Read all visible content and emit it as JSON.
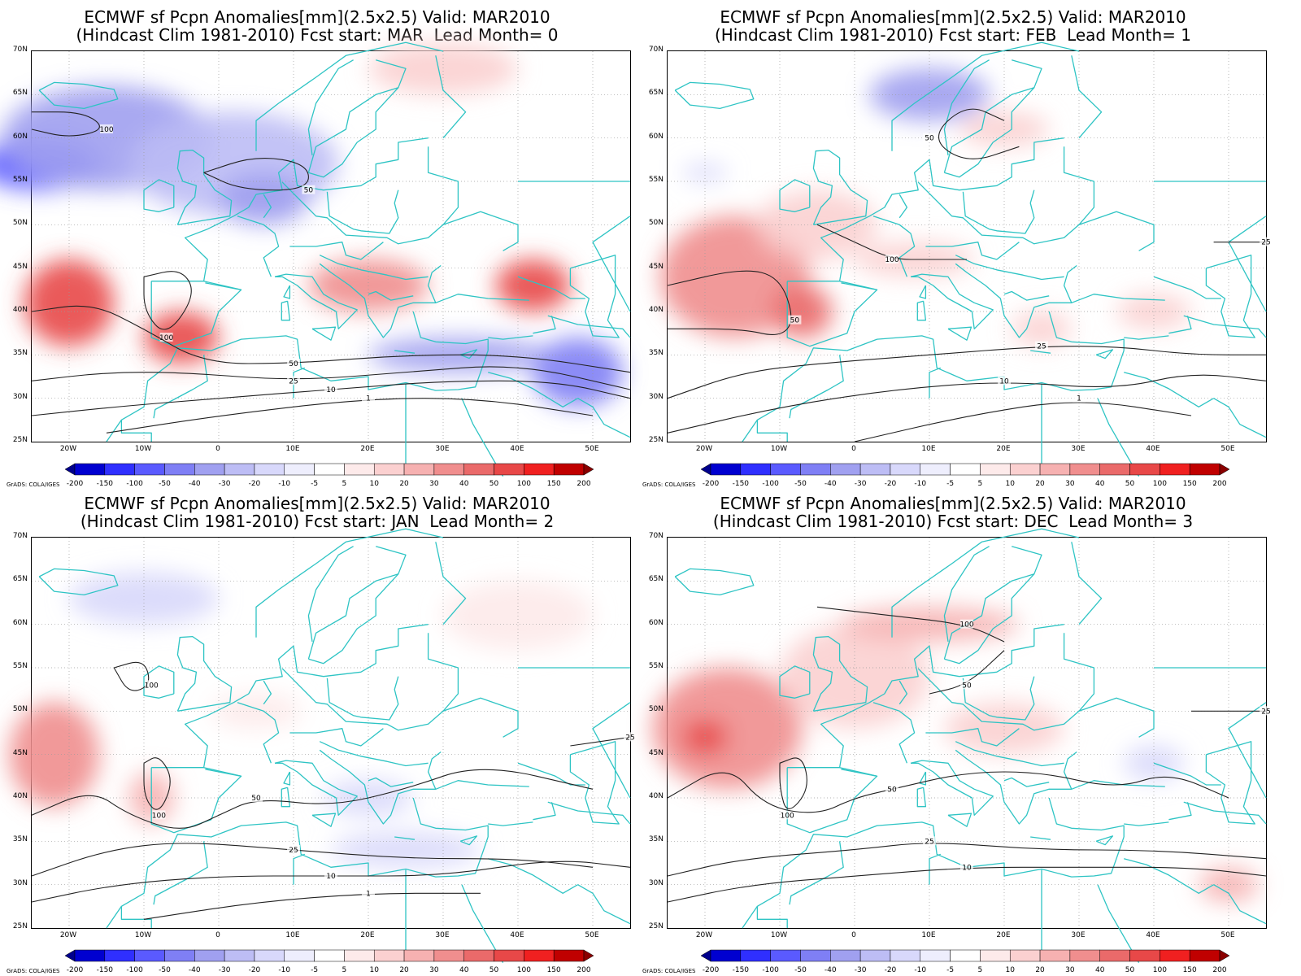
{
  "colors": {
    "coast": "#2ec4c4",
    "contour": "#222222",
    "grid": "#9a9a9a",
    "scale": [
      "#00008c",
      "#0000d0",
      "#2f2fff",
      "#5a5aff",
      "#7f7ff5",
      "#a0a0f0",
      "#bdbdf5",
      "#d8d8fb",
      "#eeeefd",
      "#ffffff",
      "#fdeaea",
      "#fbd0d0",
      "#f6b1b1",
      "#f08e8e",
      "#ea6a6a",
      "#e84848",
      "#f02020",
      "#c00000",
      "#8a0000"
    ]
  },
  "colorbar": {
    "labels": [
      "-200",
      "-150",
      "-100",
      "-50",
      "-40",
      "-30",
      "-20",
      "-10",
      "-5",
      "5",
      "10",
      "20",
      "30",
      "40",
      "50",
      "100",
      "150",
      "200"
    ],
    "credit": "GrADS: COLA/IGES"
  },
  "axes": {
    "lat_labels": [
      "70N",
      "65N",
      "60N",
      "55N",
      "50N",
      "45N",
      "40N",
      "35N",
      "30N",
      "25N"
    ],
    "lon_labels": [
      "20W",
      "10W",
      "0",
      "10E",
      "20E",
      "30E",
      "40E",
      "50E"
    ]
  },
  "panels": [
    {
      "title1": "ECMWF sf Pcpn Anomalies[mm](2.5x2.5) Valid: MAR2010",
      "title2": "(Hindcast Clim 1981-2010) Fcst start: MAR  Lead Month= 0",
      "blobs": [
        {
          "lon": -24,
          "lat": 57,
          "rx": 8,
          "ry": 3,
          "level": 3
        },
        {
          "lon": -15,
          "lat": 60,
          "rx": 14,
          "ry": 6,
          "level": 5
        },
        {
          "lon": 2,
          "lat": 57,
          "rx": 14,
          "ry": 6,
          "level": 6
        },
        {
          "lon": 6,
          "lat": 53,
          "rx": 6,
          "ry": 3,
          "level": 5
        },
        {
          "lon": -20,
          "lat": 41,
          "rx": 6,
          "ry": 5,
          "level": 15
        },
        {
          "lon": -5,
          "lat": 37,
          "rx": 5,
          "ry": 3,
          "level": 15
        },
        {
          "lon": 20,
          "lat": 43,
          "rx": 8,
          "ry": 3,
          "level": 13
        },
        {
          "lon": 42,
          "lat": 43,
          "rx": 5,
          "ry": 3,
          "level": 15
        },
        {
          "lon": 32,
          "lat": 35,
          "rx": 12,
          "ry": 2,
          "level": 5
        },
        {
          "lon": 48,
          "lat": 33,
          "rx": 6,
          "ry": 4,
          "level": 4
        },
        {
          "lon": 30,
          "lat": 68,
          "rx": 10,
          "ry": 3,
          "level": 11
        }
      ],
      "contours": [
        {
          "label": "100",
          "points": [
            [
              -25,
              63
            ],
            [
              -18,
              63
            ],
            [
              -15,
              61
            ],
            [
              -20,
              60
            ],
            [
              -25,
              61
            ]
          ]
        },
        {
          "label": "50",
          "points": [
            [
              -2,
              56
            ],
            [
              5,
              58
            ],
            [
              12,
              57
            ],
            [
              12,
              54
            ],
            [
              3,
              54
            ],
            [
              -2,
              56
            ]
          ]
        },
        {
          "label": "100",
          "points": [
            [
              -10,
              44
            ],
            [
              -5,
              45
            ],
            [
              -3,
              42
            ],
            [
              -7,
              37
            ],
            [
              -10,
              40
            ],
            [
              -10,
              44
            ]
          ]
        },
        {
          "label": "50",
          "points": [
            [
              -25,
              40
            ],
            [
              -17,
              41
            ],
            [
              -10,
              38
            ],
            [
              -2,
              34
            ],
            [
              10,
              34
            ],
            [
              25,
              35
            ],
            [
              40,
              35
            ],
            [
              55,
              33
            ]
          ]
        },
        {
          "label": "25",
          "points": [
            [
              -25,
              32
            ],
            [
              -15,
              33
            ],
            [
              -5,
              33
            ],
            [
              10,
              32
            ],
            [
              25,
              33
            ],
            [
              40,
              34
            ],
            [
              55,
              31
            ]
          ]
        },
        {
          "label": "10",
          "points": [
            [
              -25,
              28
            ],
            [
              -14,
              29
            ],
            [
              0,
              30
            ],
            [
              15,
              31
            ],
            [
              30,
              32
            ],
            [
              45,
              32
            ],
            [
              55,
              30
            ]
          ]
        },
        {
          "label": "1",
          "points": [
            [
              -15,
              26
            ],
            [
              0,
              28
            ],
            [
              20,
              30
            ],
            [
              35,
              30
            ],
            [
              50,
              28
            ]
          ]
        }
      ]
    },
    {
      "title1": "ECMWF sf Pcpn Anomalies[mm](2.5x2.5) Valid: MAR2010",
      "title2": "(Hindcast Clim 1981-2010) Fcst start: FEB  Lead Month= 1",
      "blobs": [
        {
          "lon": -16,
          "lat": 44,
          "rx": 10,
          "ry": 7,
          "level": 13
        },
        {
          "lon": -7,
          "lat": 40,
          "rx": 4,
          "ry": 3,
          "level": 14
        },
        {
          "lon": -5,
          "lat": 50,
          "rx": 8,
          "ry": 4,
          "level": 11
        },
        {
          "lon": 8,
          "lat": 46,
          "rx": 8,
          "ry": 2,
          "level": 11
        },
        {
          "lon": 10,
          "lat": 65,
          "rx": 8,
          "ry": 3,
          "level": 5
        },
        {
          "lon": 20,
          "lat": 61,
          "rx": 6,
          "ry": 2,
          "level": 11
        },
        {
          "lon": 40,
          "lat": 40,
          "rx": 5,
          "ry": 2,
          "level": 11
        },
        {
          "lon": 25,
          "lat": 38,
          "rx": 4,
          "ry": 2,
          "level": 11
        },
        {
          "lon": -20,
          "lat": 56,
          "rx": 3,
          "ry": 1,
          "level": 7
        }
      ],
      "contours": [
        {
          "label": "50",
          "points": [
            [
              -25,
              43
            ],
            [
              -15,
              45
            ],
            [
              -10,
              44
            ],
            [
              -8,
              39
            ],
            [
              -10,
              37
            ],
            [
              -15,
              38
            ],
            [
              -25,
              38
            ]
          ]
        },
        {
          "label": "100",
          "points": [
            [
              -5,
              50
            ],
            [
              0,
              48
            ],
            [
              5,
              46
            ],
            [
              10,
              46
            ],
            [
              15,
              46
            ]
          ]
        },
        {
          "label": "25",
          "points": [
            [
              -25,
              30
            ],
            [
              -15,
              33
            ],
            [
              -5,
              34
            ],
            [
              10,
              35
            ],
            [
              25,
              36
            ],
            [
              35,
              36
            ],
            [
              45,
              35
            ],
            [
              55,
              35
            ]
          ]
        },
        {
          "label": "10",
          "points": [
            [
              -25,
              26
            ],
            [
              -10,
              29
            ],
            [
              5,
              31
            ],
            [
              20,
              32
            ],
            [
              35,
              31
            ],
            [
              45,
              33
            ],
            [
              55,
              32
            ]
          ]
        },
        {
          "label": "1",
          "points": [
            [
              0,
              25
            ],
            [
              15,
              28
            ],
            [
              30,
              30
            ],
            [
              45,
              28
            ]
          ]
        },
        {
          "label": "50",
          "points": [
            [
              20,
              62
            ],
            [
              15,
              64
            ],
            [
              10,
              60
            ],
            [
              15,
              57
            ],
            [
              22,
              59
            ]
          ]
        },
        {
          "label": "25",
          "points": [
            [
              48,
              48
            ],
            [
              55,
              48
            ]
          ]
        }
      ]
    },
    {
      "title1": "ECMWF sf Pcpn Anomalies[mm](2.5x2.5) Valid: MAR2010",
      "title2": "(Hindcast Clim 1981-2010) Fcst start: JAN  Lead Month= 2",
      "blobs": [
        {
          "lon": -22,
          "lat": 45,
          "rx": 6,
          "ry": 6,
          "level": 13
        },
        {
          "lon": -9,
          "lat": 40,
          "rx": 3,
          "ry": 3,
          "level": 12
        },
        {
          "lon": -10,
          "lat": 63,
          "rx": 10,
          "ry": 3,
          "level": 7
        },
        {
          "lon": 40,
          "lat": 61,
          "rx": 10,
          "ry": 4,
          "level": 10
        },
        {
          "lon": 5,
          "lat": 50,
          "rx": 6,
          "ry": 2,
          "level": 10
        },
        {
          "lon": 20,
          "lat": 40,
          "rx": 6,
          "ry": 2,
          "level": 7
        },
        {
          "lon": 25,
          "lat": 34,
          "rx": 10,
          "ry": 2,
          "level": 7
        }
      ],
      "contours": [
        {
          "label": "100",
          "points": [
            [
              -14,
              55
            ],
            [
              -10,
              56
            ],
            [
              -9,
              53
            ],
            [
              -12,
              52
            ],
            [
              -14,
              55
            ]
          ]
        },
        {
          "label": "100",
          "points": [
            [
              -10,
              44
            ],
            [
              -8,
              45
            ],
            [
              -6,
              42
            ],
            [
              -8,
              38
            ],
            [
              -10,
              40
            ],
            [
              -10,
              44
            ]
          ]
        },
        {
          "label": "50",
          "points": [
            [
              -25,
              38
            ],
            [
              -17,
              41
            ],
            [
              -12,
              38
            ],
            [
              -5,
              36
            ],
            [
              0,
              38
            ],
            [
              5,
              40
            ],
            [
              15,
              39
            ],
            [
              25,
              41
            ],
            [
              35,
              44
            ],
            [
              50,
              41
            ]
          ]
        },
        {
          "label": "25",
          "points": [
            [
              -25,
              31
            ],
            [
              -15,
              34
            ],
            [
              -5,
              35
            ],
            [
              10,
              34
            ],
            [
              25,
              33
            ],
            [
              40,
              33
            ],
            [
              50,
              32
            ]
          ]
        },
        {
          "label": "10",
          "points": [
            [
              -25,
              28
            ],
            [
              -14,
              30
            ],
            [
              0,
              31
            ],
            [
              15,
              31
            ],
            [
              30,
              31
            ],
            [
              45,
              33
            ],
            [
              55,
              32
            ]
          ]
        },
        {
          "label": "1",
          "points": [
            [
              -10,
              26
            ],
            [
              5,
              28
            ],
            [
              20,
              29
            ],
            [
              35,
              29
            ]
          ]
        },
        {
          "label": "25",
          "points": [
            [
              47,
              46
            ],
            [
              55,
              47
            ]
          ]
        }
      ]
    },
    {
      "title1": "ECMWF sf Pcpn Anomalies[mm](2.5x2.5) Valid: MAR2010",
      "title2": "(Hindcast Clim 1981-2010) Fcst start: DEC  Lead Month= 3",
      "blobs": [
        {
          "lon": -17,
          "lat": 48,
          "rx": 10,
          "ry": 7,
          "level": 13
        },
        {
          "lon": -20,
          "lat": 47,
          "rx": 3,
          "ry": 2,
          "level": 15
        },
        {
          "lon": 0,
          "lat": 54,
          "rx": 10,
          "ry": 6,
          "level": 11
        },
        {
          "lon": 10,
          "lat": 60,
          "rx": 12,
          "ry": 2,
          "level": 12
        },
        {
          "lon": 20,
          "lat": 48,
          "rx": 8,
          "ry": 3,
          "level": 11
        },
        {
          "lon": 40,
          "lat": 44,
          "rx": 4,
          "ry": 2,
          "level": 7
        },
        {
          "lon": 50,
          "lat": 30,
          "rx": 4,
          "ry": 2,
          "level": 12
        }
      ],
      "contours": [
        {
          "label": "100",
          "points": [
            [
              -5,
              62
            ],
            [
              5,
              61
            ],
            [
              15,
              60
            ],
            [
              20,
              58
            ]
          ]
        },
        {
          "label": "100",
          "points": [
            [
              -10,
              44
            ],
            [
              -7,
              45
            ],
            [
              -6,
              41
            ],
            [
              -9,
              38
            ],
            [
              -10,
              41
            ],
            [
              -10,
              44
            ]
          ]
        },
        {
          "label": "50",
          "points": [
            [
              -25,
              40
            ],
            [
              -17,
              44
            ],
            [
              -12,
              39
            ],
            [
              -5,
              38
            ],
            [
              0,
              40
            ],
            [
              5,
              41
            ],
            [
              15,
              43
            ],
            [
              25,
              43
            ],
            [
              35,
              41
            ],
            [
              42,
              43
            ],
            [
              50,
              40
            ]
          ]
        },
        {
          "label": "25",
          "points": [
            [
              -25,
              31
            ],
            [
              -15,
              33
            ],
            [
              0,
              34
            ],
            [
              10,
              35
            ],
            [
              25,
              34
            ],
            [
              40,
              34
            ],
            [
              55,
              33
            ]
          ]
        },
        {
          "label": "10",
          "points": [
            [
              -25,
              28
            ],
            [
              -14,
              30
            ],
            [
              0,
              31
            ],
            [
              15,
              32
            ],
            [
              30,
              32
            ],
            [
              45,
              32
            ],
            [
              55,
              31
            ]
          ]
        },
        {
          "label": "50",
          "points": [
            [
              10,
              52
            ],
            [
              15,
              53
            ],
            [
              20,
              57
            ]
          ]
        },
        {
          "label": "25",
          "points": [
            [
              45,
              50
            ],
            [
              55,
              50
            ]
          ]
        }
      ]
    }
  ]
}
